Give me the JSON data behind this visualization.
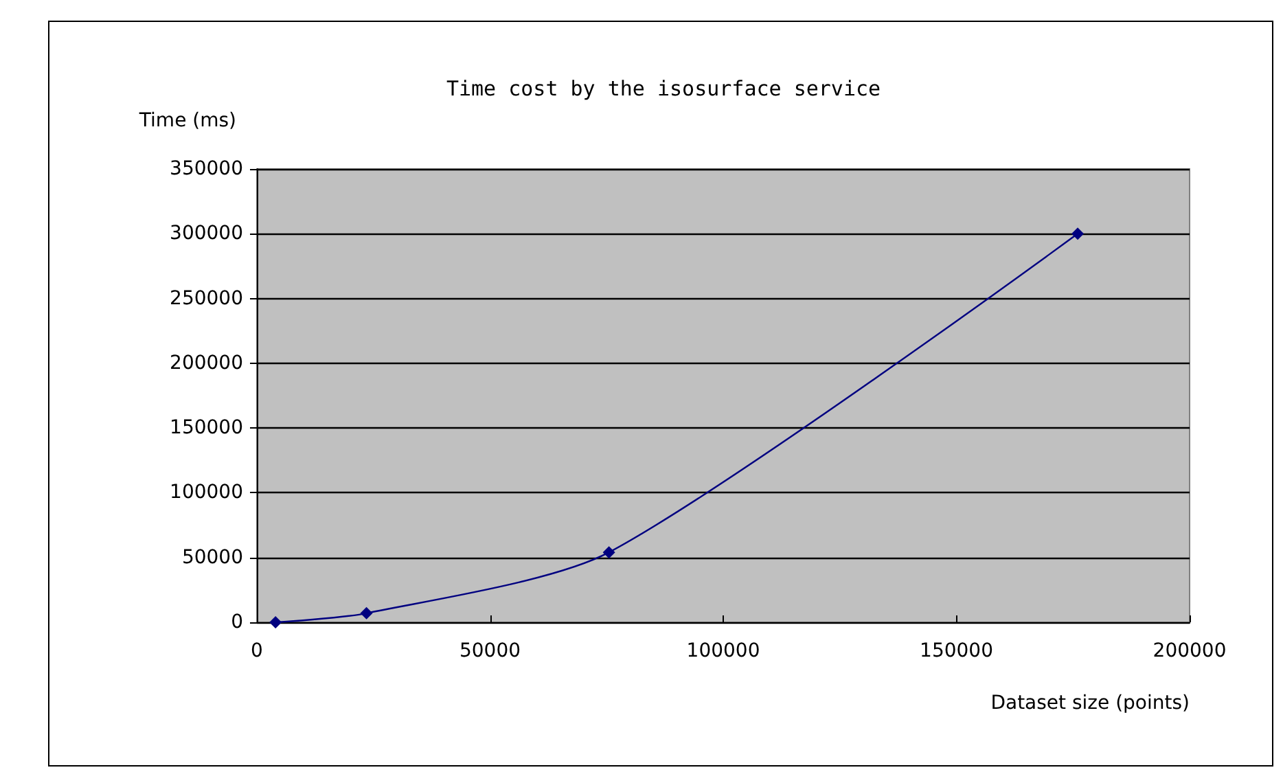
{
  "chart_data": {
    "type": "line",
    "title": "Time cost by the isosurface service",
    "xlabel": "Dataset size (points)",
    "ylabel": "Time (ms)",
    "x": [
      4000,
      23500,
      75500,
      176000
    ],
    "series": [
      {
        "color": "#000080",
        "values": [
          0,
          7000,
          54000,
          300000
        ]
      }
    ],
    "xlim": [
      0,
      200000
    ],
    "xticks": [
      0,
      50000,
      100000,
      150000,
      200000
    ],
    "ylim": [
      0,
      350000
    ],
    "yticks": [
      0,
      50000,
      100000,
      150000,
      200000,
      250000,
      300000,
      350000
    ],
    "grid": "y",
    "marker": "diamond",
    "line_style": "solid"
  }
}
